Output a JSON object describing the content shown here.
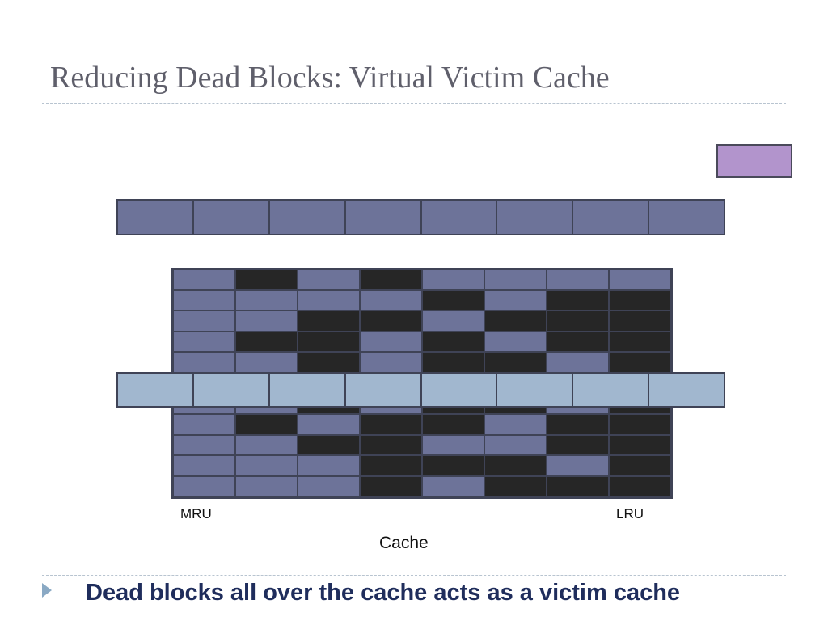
{
  "slide": {
    "title": "Reducing Dead Blocks: Virtual Victim Cache",
    "bullet_text": "Dead blocks all over the cache acts as a victim cache"
  },
  "diagram": {
    "mru_label": "MRU",
    "lru_label": "LRU",
    "cache_label": "Cache",
    "set_row_blocks": 8,
    "victim_row_blocks": 8,
    "grid": [
      [
        "L",
        "D",
        "L",
        "D",
        "L",
        "L",
        "L",
        "L"
      ],
      [
        "L",
        "L",
        "L",
        "L",
        "D",
        "L",
        "D",
        "D"
      ],
      [
        "L",
        "L",
        "D",
        "D",
        "L",
        "D",
        "D",
        "D"
      ],
      [
        "L",
        "D",
        "D",
        "L",
        "D",
        "L",
        "D",
        "D"
      ],
      [
        "L",
        "L",
        "D",
        "L",
        "D",
        "D",
        "L",
        "D"
      ],
      [
        "L",
        "L",
        "L",
        "L",
        "L",
        "L",
        "L",
        "L"
      ],
      [
        "L",
        "L",
        "D",
        "L",
        "D",
        "D",
        "L",
        "D"
      ],
      [
        "L",
        "D",
        "L",
        "D",
        "D",
        "L",
        "D",
        "D"
      ],
      [
        "L",
        "L",
        "D",
        "D",
        "L",
        "L",
        "D",
        "D"
      ],
      [
        "L",
        "L",
        "L",
        "D",
        "D",
        "D",
        "L",
        "D"
      ],
      [
        "L",
        "L",
        "L",
        "D",
        "L",
        "D",
        "D",
        "D"
      ]
    ],
    "colors": {
      "live_block": "#6d7399",
      "dead_block": "#262626",
      "victim_block": "#a1b7cf",
      "incoming_block": "#b294cc",
      "outline": "#3f4356"
    }
  }
}
